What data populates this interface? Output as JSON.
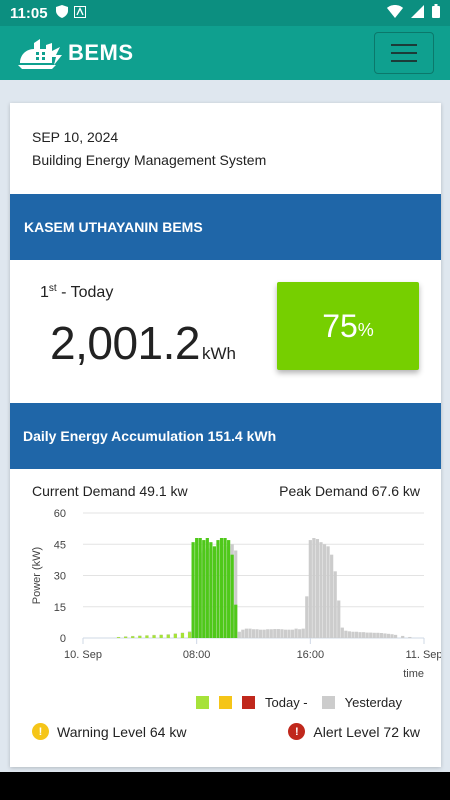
{
  "status_bar": {
    "time": "11:05"
  },
  "header": {
    "brand": "BEMS"
  },
  "card": {
    "date": "SEP 10, 2024",
    "subtitle": "Building Energy Management System",
    "building_name": "KASEM UTHAYANIN BEMS",
    "rank_num": "1",
    "rank_suffix": "st",
    "rank_label": " - Today",
    "energy_value": "2,001.2",
    "energy_unit": "kWh",
    "percent_value": "75",
    "percent_sign": "%",
    "percent_color": "#76cf00",
    "accumulation_label": "Daily Energy Accumulation 151.4 kWh",
    "current_demand": "Current  Demand 49.1  kw",
    "peak_demand": "Peak Demand 67.6  kw",
    "legend_today": "Today -",
    "legend_yesterday": "Yesterday",
    "warning_label": "Warning Level 64  kw",
    "alert_label": "Alert Level 72  kw"
  },
  "chart_data": {
    "type": "bar",
    "ylabel": "Power (kW)",
    "xlabel": "time",
    "ylim": [
      0,
      60
    ],
    "yticks": [
      0,
      15,
      30,
      45,
      60
    ],
    "xtick_labels": [
      "10. Sep",
      "08:00",
      "16:00",
      "11. Sep"
    ],
    "x_range_hours": [
      0,
      24
    ],
    "legend_colors": [
      "#a6e23a",
      "#f5c518",
      "#c0281c",
      "#cccccc"
    ],
    "series": [
      {
        "name": "Yesterday",
        "color": "#cccccc",
        "x": [
          2.5,
          3,
          3.5,
          4,
          4.5,
          5,
          5.5,
          6,
          6.5,
          7,
          7.5,
          7.75,
          8,
          8.25,
          8.5,
          8.75,
          9,
          9.25,
          9.5,
          9.75,
          10,
          10.25,
          10.5,
          10.75,
          11,
          11.25,
          11.5,
          11.75,
          12,
          12.25,
          12.5,
          12.75,
          13,
          13.25,
          13.5,
          13.75,
          14,
          14.25,
          14.5,
          14.75,
          15,
          15.25,
          15.5,
          15.75,
          16,
          16.25,
          16.5,
          16.75,
          17,
          17.25,
          17.5,
          17.75,
          18,
          18.25,
          18.5,
          18.75,
          19,
          19.25,
          19.5,
          19.75,
          20,
          20.25,
          20.5,
          20.75,
          21,
          21.25,
          21.5,
          21.75,
          22,
          22.5,
          23
        ],
        "values": [
          0.5,
          0.8,
          1,
          1.2,
          1.3,
          1.5,
          1.6,
          1.8,
          2.2,
          2.6,
          3.2,
          28,
          38,
          41,
          42,
          43,
          43,
          42,
          42,
          44,
          44,
          44,
          45,
          42,
          3,
          4,
          4.5,
          4.5,
          4.2,
          4.2,
          4,
          4,
          4.2,
          4.2,
          4.3,
          4.3,
          4.2,
          4,
          4,
          4,
          4.5,
          4.2,
          4.5,
          20,
          47,
          48,
          47.5,
          46,
          45,
          44,
          40,
          32,
          18,
          5,
          3.5,
          3.2,
          3,
          3,
          2.8,
          2.8,
          2.6,
          2.6,
          2.5,
          2.5,
          2.4,
          2.2,
          2,
          1.8,
          1.5,
          1,
          0.5
        ]
      },
      {
        "name": "Today",
        "color": "#a6e23a",
        "x": [
          2.5,
          3,
          3.5,
          4,
          4.5,
          5,
          5.5,
          6,
          6.5,
          7,
          7.5,
          7.75,
          8,
          8.25,
          8.5,
          8.75,
          9,
          9.25,
          9.5,
          9.75,
          10,
          10.25,
          10.5,
          10.75
        ],
        "values": [
          0.4,
          0.6,
          0.8,
          1,
          1.2,
          1.3,
          1.5,
          1.6,
          2,
          2.4,
          2.8,
          46,
          48,
          48,
          47,
          48,
          46,
          44,
          47,
          48,
          48,
          47,
          40,
          16
        ],
        "highlight": {
          "from": 7.75,
          "to": 10.75,
          "color": "#4fc81a"
        }
      }
    ]
  }
}
